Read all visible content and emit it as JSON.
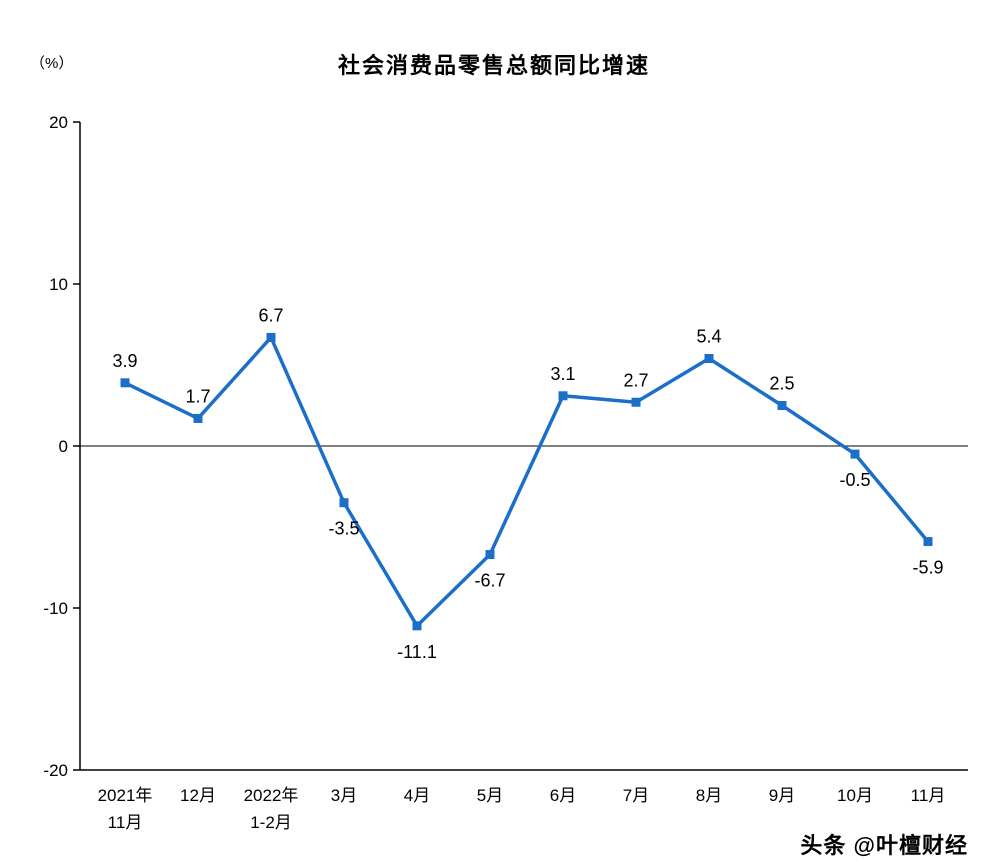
{
  "chart": {
    "title": "社会消费品零售总额同比增速",
    "unit_label": "（%）",
    "watermark": "头条 @叶檀财经"
  },
  "chart_data": {
    "type": "line",
    "title": "社会消费品零售总额同比增速",
    "unit": "%",
    "categories": [
      [
        "2021年",
        "11月"
      ],
      [
        "12月"
      ],
      [
        "2022年",
        "1-2月"
      ],
      [
        "3月"
      ],
      [
        "4月"
      ],
      [
        "5月"
      ],
      [
        "6月"
      ],
      [
        "7月"
      ],
      [
        "8月"
      ],
      [
        "9月"
      ],
      [
        "10月"
      ],
      [
        "11月"
      ]
    ],
    "values": [
      3.9,
      1.7,
      6.7,
      -3.5,
      -11.1,
      -6.7,
      3.1,
      2.7,
      5.4,
      2.5,
      -0.5,
      -5.9
    ],
    "ylim": [
      -20,
      20
    ],
    "yticks": [
      20,
      10,
      0,
      -10,
      -20
    ],
    "line_color": "#1C6FC8",
    "marker": "square",
    "zero_line": true,
    "grid": "off",
    "legend": "none"
  }
}
